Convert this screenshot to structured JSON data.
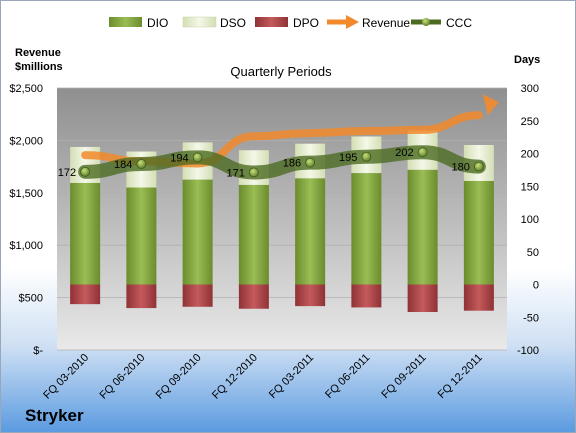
{
  "company": "Stryker",
  "chart_data": {
    "type": "bar",
    "title": "Quarterly Periods",
    "categories": [
      "FQ 03-2010",
      "FQ 06-2010",
      "FQ 09-2010",
      "FQ 12-2010",
      "FQ 03-2011",
      "FQ 06-2011",
      "FQ 09-2011",
      "FQ 12-2011"
    ],
    "left_axis": {
      "label": "Revenue $millions",
      "range": [
        0,
        2500
      ],
      "ticks": [
        "$-",
        "$500",
        "$1,000",
        "$1,500",
        "$2,000",
        "$2,500"
      ]
    },
    "right_axis": {
      "label": "Days",
      "range": [
        -100,
        300
      ],
      "ticks": [
        "-100",
        "-50",
        "0",
        "50",
        "100",
        "150",
        "200",
        "250",
        "300"
      ]
    },
    "legend_position": "top",
    "series": [
      {
        "name": "DIO",
        "axis": "right",
        "color": "#7fa33a",
        "values": [
          155,
          148,
          160,
          152,
          162,
          170,
          175,
          158
        ]
      },
      {
        "name": "DSO",
        "axis": "right",
        "color": "#e6efcf",
        "values": [
          55,
          55,
          57,
          53,
          53,
          56,
          60,
          55
        ]
      },
      {
        "name": "DPO",
        "axis": "right",
        "color": "#b5474a",
        "values": [
          -30,
          -36,
          -34,
          -37,
          -33,
          -35,
          -42,
          -40
        ]
      },
      {
        "name": "Revenue",
        "axis": "left",
        "color": "#f28a2c",
        "values": [
          1860,
          1800,
          1780,
          2040,
          2070,
          2090,
          2100,
          2240
        ]
      },
      {
        "name": "CCC",
        "axis": "right",
        "color": "#5a7a2a",
        "values": [
          172,
          184,
          194,
          171,
          186,
          195,
          202,
          180
        ]
      }
    ],
    "grid": true
  }
}
